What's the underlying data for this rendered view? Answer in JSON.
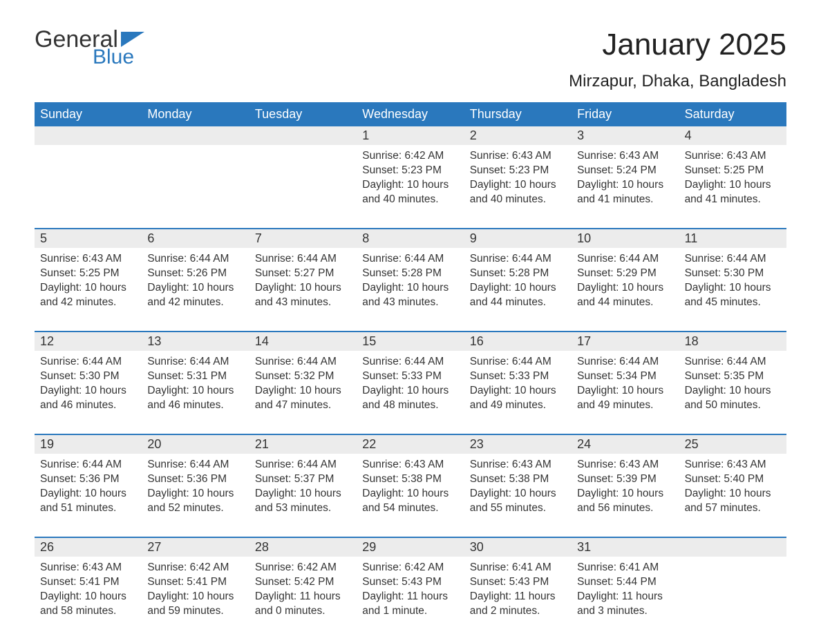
{
  "logo": {
    "word1": "General",
    "word2": "Blue",
    "color1": "#333333",
    "color2": "#2a78bd"
  },
  "title": "January 2025",
  "location": "Mirzapur, Dhaka, Bangladesh",
  "colors": {
    "headerBg": "#2a78bd",
    "headerText": "#ffffff",
    "dayNumBg": "#ececec",
    "weekTopBorder": "#2a78bd",
    "bodyText": "#333333",
    "pageBg": "#ffffff"
  },
  "fonts": {
    "title_pt": 44,
    "location_pt": 24,
    "header_pt": 18,
    "body_pt": 15.5
  },
  "dayNames": [
    "Sunday",
    "Monday",
    "Tuesday",
    "Wednesday",
    "Thursday",
    "Friday",
    "Saturday"
  ],
  "weeks": [
    [
      null,
      null,
      null,
      {
        "n": "1",
        "sr": "Sunrise: 6:42 AM",
        "ss": "Sunset: 5:23 PM",
        "d1": "Daylight: 10 hours",
        "d2": "and 40 minutes."
      },
      {
        "n": "2",
        "sr": "Sunrise: 6:43 AM",
        "ss": "Sunset: 5:23 PM",
        "d1": "Daylight: 10 hours",
        "d2": "and 40 minutes."
      },
      {
        "n": "3",
        "sr": "Sunrise: 6:43 AM",
        "ss": "Sunset: 5:24 PM",
        "d1": "Daylight: 10 hours",
        "d2": "and 41 minutes."
      },
      {
        "n": "4",
        "sr": "Sunrise: 6:43 AM",
        "ss": "Sunset: 5:25 PM",
        "d1": "Daylight: 10 hours",
        "d2": "and 41 minutes."
      }
    ],
    [
      {
        "n": "5",
        "sr": "Sunrise: 6:43 AM",
        "ss": "Sunset: 5:25 PM",
        "d1": "Daylight: 10 hours",
        "d2": "and 42 minutes."
      },
      {
        "n": "6",
        "sr": "Sunrise: 6:44 AM",
        "ss": "Sunset: 5:26 PM",
        "d1": "Daylight: 10 hours",
        "d2": "and 42 minutes."
      },
      {
        "n": "7",
        "sr": "Sunrise: 6:44 AM",
        "ss": "Sunset: 5:27 PM",
        "d1": "Daylight: 10 hours",
        "d2": "and 43 minutes."
      },
      {
        "n": "8",
        "sr": "Sunrise: 6:44 AM",
        "ss": "Sunset: 5:28 PM",
        "d1": "Daylight: 10 hours",
        "d2": "and 43 minutes."
      },
      {
        "n": "9",
        "sr": "Sunrise: 6:44 AM",
        "ss": "Sunset: 5:28 PM",
        "d1": "Daylight: 10 hours",
        "d2": "and 44 minutes."
      },
      {
        "n": "10",
        "sr": "Sunrise: 6:44 AM",
        "ss": "Sunset: 5:29 PM",
        "d1": "Daylight: 10 hours",
        "d2": "and 44 minutes."
      },
      {
        "n": "11",
        "sr": "Sunrise: 6:44 AM",
        "ss": "Sunset: 5:30 PM",
        "d1": "Daylight: 10 hours",
        "d2": "and 45 minutes."
      }
    ],
    [
      {
        "n": "12",
        "sr": "Sunrise: 6:44 AM",
        "ss": "Sunset: 5:30 PM",
        "d1": "Daylight: 10 hours",
        "d2": "and 46 minutes."
      },
      {
        "n": "13",
        "sr": "Sunrise: 6:44 AM",
        "ss": "Sunset: 5:31 PM",
        "d1": "Daylight: 10 hours",
        "d2": "and 46 minutes."
      },
      {
        "n": "14",
        "sr": "Sunrise: 6:44 AM",
        "ss": "Sunset: 5:32 PM",
        "d1": "Daylight: 10 hours",
        "d2": "and 47 minutes."
      },
      {
        "n": "15",
        "sr": "Sunrise: 6:44 AM",
        "ss": "Sunset: 5:33 PM",
        "d1": "Daylight: 10 hours",
        "d2": "and 48 minutes."
      },
      {
        "n": "16",
        "sr": "Sunrise: 6:44 AM",
        "ss": "Sunset: 5:33 PM",
        "d1": "Daylight: 10 hours",
        "d2": "and 49 minutes."
      },
      {
        "n": "17",
        "sr": "Sunrise: 6:44 AM",
        "ss": "Sunset: 5:34 PM",
        "d1": "Daylight: 10 hours",
        "d2": "and 49 minutes."
      },
      {
        "n": "18",
        "sr": "Sunrise: 6:44 AM",
        "ss": "Sunset: 5:35 PM",
        "d1": "Daylight: 10 hours",
        "d2": "and 50 minutes."
      }
    ],
    [
      {
        "n": "19",
        "sr": "Sunrise: 6:44 AM",
        "ss": "Sunset: 5:36 PM",
        "d1": "Daylight: 10 hours",
        "d2": "and 51 minutes."
      },
      {
        "n": "20",
        "sr": "Sunrise: 6:44 AM",
        "ss": "Sunset: 5:36 PM",
        "d1": "Daylight: 10 hours",
        "d2": "and 52 minutes."
      },
      {
        "n": "21",
        "sr": "Sunrise: 6:44 AM",
        "ss": "Sunset: 5:37 PM",
        "d1": "Daylight: 10 hours",
        "d2": "and 53 minutes."
      },
      {
        "n": "22",
        "sr": "Sunrise: 6:43 AM",
        "ss": "Sunset: 5:38 PM",
        "d1": "Daylight: 10 hours",
        "d2": "and 54 minutes."
      },
      {
        "n": "23",
        "sr": "Sunrise: 6:43 AM",
        "ss": "Sunset: 5:38 PM",
        "d1": "Daylight: 10 hours",
        "d2": "and 55 minutes."
      },
      {
        "n": "24",
        "sr": "Sunrise: 6:43 AM",
        "ss": "Sunset: 5:39 PM",
        "d1": "Daylight: 10 hours",
        "d2": "and 56 minutes."
      },
      {
        "n": "25",
        "sr": "Sunrise: 6:43 AM",
        "ss": "Sunset: 5:40 PM",
        "d1": "Daylight: 10 hours",
        "d2": "and 57 minutes."
      }
    ],
    [
      {
        "n": "26",
        "sr": "Sunrise: 6:43 AM",
        "ss": "Sunset: 5:41 PM",
        "d1": "Daylight: 10 hours",
        "d2": "and 58 minutes."
      },
      {
        "n": "27",
        "sr": "Sunrise: 6:42 AM",
        "ss": "Sunset: 5:41 PM",
        "d1": "Daylight: 10 hours",
        "d2": "and 59 minutes."
      },
      {
        "n": "28",
        "sr": "Sunrise: 6:42 AM",
        "ss": "Sunset: 5:42 PM",
        "d1": "Daylight: 11 hours",
        "d2": "and 0 minutes."
      },
      {
        "n": "29",
        "sr": "Sunrise: 6:42 AM",
        "ss": "Sunset: 5:43 PM",
        "d1": "Daylight: 11 hours",
        "d2": "and 1 minute."
      },
      {
        "n": "30",
        "sr": "Sunrise: 6:41 AM",
        "ss": "Sunset: 5:43 PM",
        "d1": "Daylight: 11 hours",
        "d2": "and 2 minutes."
      },
      {
        "n": "31",
        "sr": "Sunrise: 6:41 AM",
        "ss": "Sunset: 5:44 PM",
        "d1": "Daylight: 11 hours",
        "d2": "and 3 minutes."
      },
      null
    ]
  ]
}
